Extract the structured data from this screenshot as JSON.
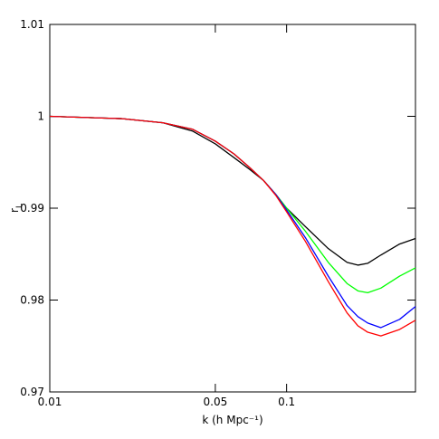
{
  "chart_data": {
    "type": "line",
    "xlabel": "k (h Mpc⁻¹)",
    "ylabel": "r",
    "ylabel_subscript": "L",
    "xscale": "log",
    "x": [
      0.01,
      0.02,
      0.03,
      0.04,
      0.05,
      0.06,
      0.07,
      0.08,
      0.09,
      0.1,
      0.12,
      0.15,
      0.18,
      0.2,
      0.22,
      0.25,
      0.3,
      0.35
    ],
    "series": [
      {
        "color": "#000000",
        "values": [
          1.0,
          0.99975,
          0.9993,
          0.9984,
          0.997,
          0.9955,
          0.9942,
          0.993,
          0.9915,
          0.99,
          0.988,
          0.9856,
          0.9841,
          0.9838,
          0.984,
          0.9849,
          0.9861,
          0.9867
        ]
      },
      {
        "color": "#00ff00",
        "values": [
          1.0,
          0.99975,
          0.9993,
          0.9986,
          0.9973,
          0.9959,
          0.9944,
          0.993,
          0.9915,
          0.99,
          0.9875,
          0.9841,
          0.9818,
          0.981,
          0.9808,
          0.9813,
          0.9826,
          0.9835
        ]
      },
      {
        "color": "#0000ff",
        "values": [
          1.0,
          0.99975,
          0.9993,
          0.9986,
          0.9973,
          0.9959,
          0.9944,
          0.993,
          0.9915,
          0.9898,
          0.9868,
          0.9826,
          0.9794,
          0.9782,
          0.9775,
          0.977,
          0.9779,
          0.9793
        ]
      },
      {
        "color": "#ff0000",
        "values": [
          1.0,
          0.99975,
          0.9993,
          0.9986,
          0.9973,
          0.9959,
          0.9944,
          0.993,
          0.9914,
          0.9896,
          0.9864,
          0.982,
          0.9786,
          0.9772,
          0.9765,
          0.9761,
          0.9768,
          0.9778
        ]
      }
    ],
    "xlim": [
      0.01,
      0.35
    ],
    "xticks": [
      0.01,
      0.05,
      0.1
    ],
    "ylim": [
      0.97,
      1.01
    ],
    "yticks": [
      0.97,
      0.98,
      0.99,
      1,
      1.01
    ]
  }
}
